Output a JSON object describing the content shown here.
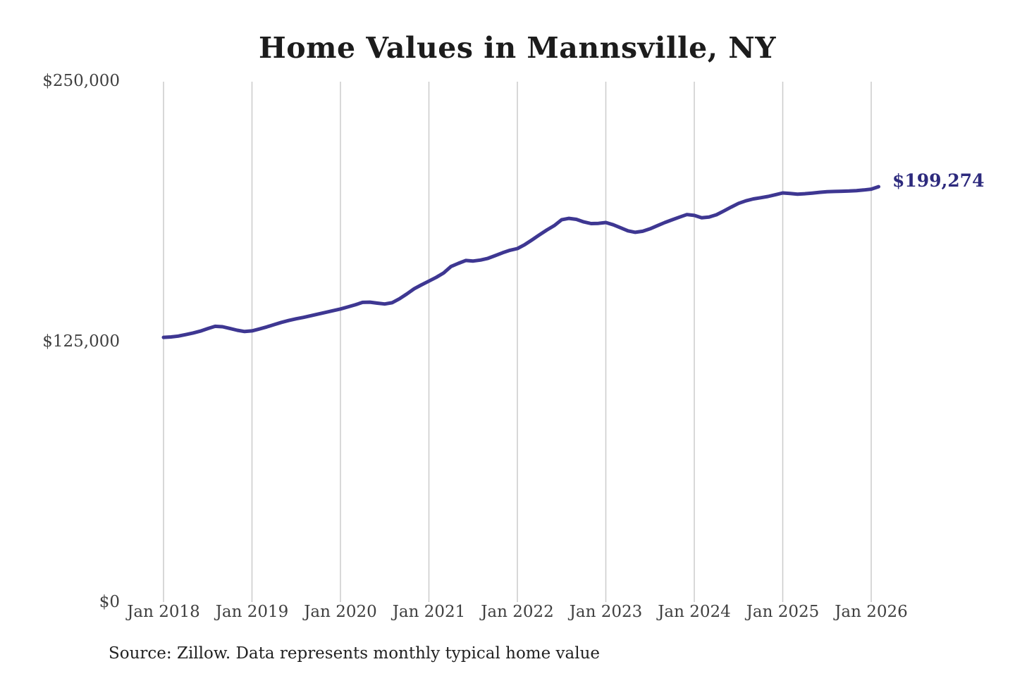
{
  "page": {
    "source_note": "Source: Zillow. Data represents monthly typical home value"
  },
  "chart_data": {
    "type": "line",
    "title": "Home Values in Mannsville, NY",
    "xlabel": "",
    "ylabel": "",
    "ylim": [
      0,
      250000
    ],
    "grid": "vertical-only",
    "x_tick_labels": [
      "Jan 2018",
      "Jan 2019",
      "Jan 2020",
      "Jan 2021",
      "Jan 2022",
      "Jan 2023",
      "Jan 2024",
      "Jan 2025",
      "Jan 2026"
    ],
    "months_per_tick": 12,
    "y_ticks": [
      {
        "label": "$250,000",
        "value": 250000
      },
      {
        "label": "$125,000",
        "value": 125000
      },
      {
        "label": "$0",
        "value": 0
      }
    ],
    "final_value_label": "$199,274",
    "final_value": 199274,
    "series": [
      {
        "name": "Monthly typical home value",
        "start_month": "Jan 2018",
        "end_month": "Feb 2026",
        "values": [
          127000,
          127200,
          127600,
          128300,
          129100,
          130000,
          131200,
          132300,
          132100,
          131300,
          130400,
          129800,
          130100,
          131000,
          132000,
          133100,
          134200,
          135100,
          135900,
          136600,
          137400,
          138200,
          139000,
          139800,
          140600,
          141600,
          142600,
          143800,
          143900,
          143400,
          143000,
          143600,
          145500,
          147800,
          150300,
          152200,
          154000,
          155800,
          157900,
          161000,
          162500,
          163900,
          163600,
          164100,
          164900,
          166200,
          167600,
          168800,
          169600,
          171500,
          173800,
          176200,
          178500,
          180600,
          183400,
          184100,
          183600,
          182400,
          181600,
          181700,
          182100,
          181000,
          179600,
          178100,
          177400,
          177900,
          179100,
          180600,
          182100,
          183400,
          184700,
          185900,
          185500,
          184400,
          184700,
          185800,
          187600,
          189500,
          191300,
          192500,
          193400,
          194000,
          194600,
          195400,
          196300,
          196000,
          195700,
          195900,
          196200,
          196600,
          196900,
          197000,
          197100,
          197200,
          197400,
          197700,
          198100,
          199274
        ]
      }
    ],
    "colors": {
      "line": "#3e3792",
      "final_label": "#2d2a7d",
      "grid": "#cbcbcb",
      "title": "#1c1c1c",
      "tick_text": "#404040",
      "source_text": "#222222",
      "background": "#ffffff"
    }
  }
}
